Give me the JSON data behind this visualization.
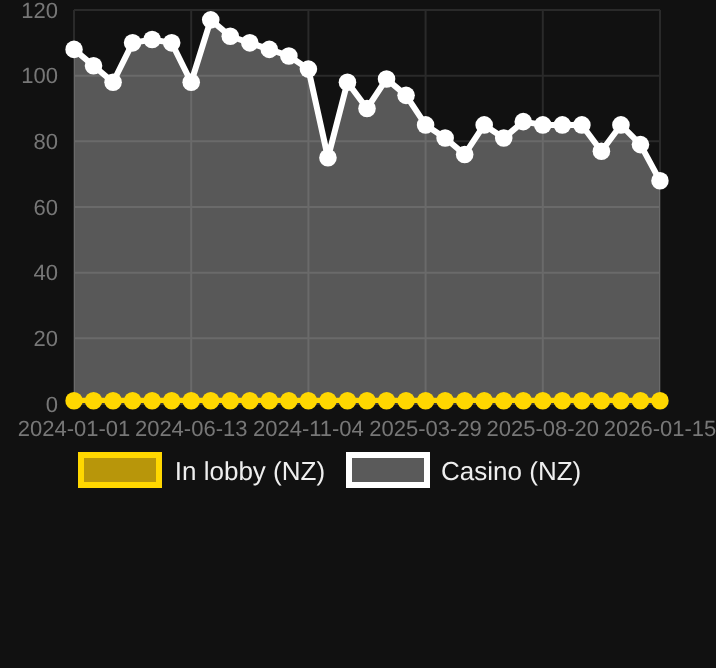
{
  "chart_data": {
    "type": "area",
    "categories": [
      "2024-01-01",
      null,
      null,
      null,
      null,
      null,
      "2024-06-13",
      null,
      null,
      null,
      null,
      null,
      "2024-11-04",
      null,
      null,
      null,
      null,
      null,
      "2025-03-29",
      null,
      null,
      null,
      null,
      null,
      "2025-08-20",
      null,
      null,
      null,
      null,
      null,
      "2026-01-15"
    ],
    "series": [
      {
        "name": "In lobby (NZ)",
        "type": "line",
        "color": "#ffd700",
        "values": [
          1,
          1,
          1,
          1,
          1,
          1,
          1,
          1,
          1,
          1,
          1,
          1,
          1,
          1,
          1,
          1,
          1,
          1,
          1,
          1,
          1,
          1,
          1,
          1,
          1,
          1,
          1,
          1,
          1,
          1,
          1
        ]
      },
      {
        "name": "Casino (NZ)",
        "color": "#ffffff",
        "values": [
          108,
          103,
          98,
          110,
          111,
          110,
          98,
          117,
          112,
          110,
          108,
          106,
          102,
          75,
          98,
          90,
          99,
          94,
          85,
          81,
          76,
          85,
          81,
          86,
          85,
          85,
          85,
          77,
          85,
          79,
          68
        ]
      }
    ],
    "ylim": [
      0,
      120
    ],
    "yticks": [
      0,
      20,
      40,
      60,
      80,
      100,
      120
    ],
    "grid": true,
    "legend": "bottom",
    "marker": "circle"
  }
}
